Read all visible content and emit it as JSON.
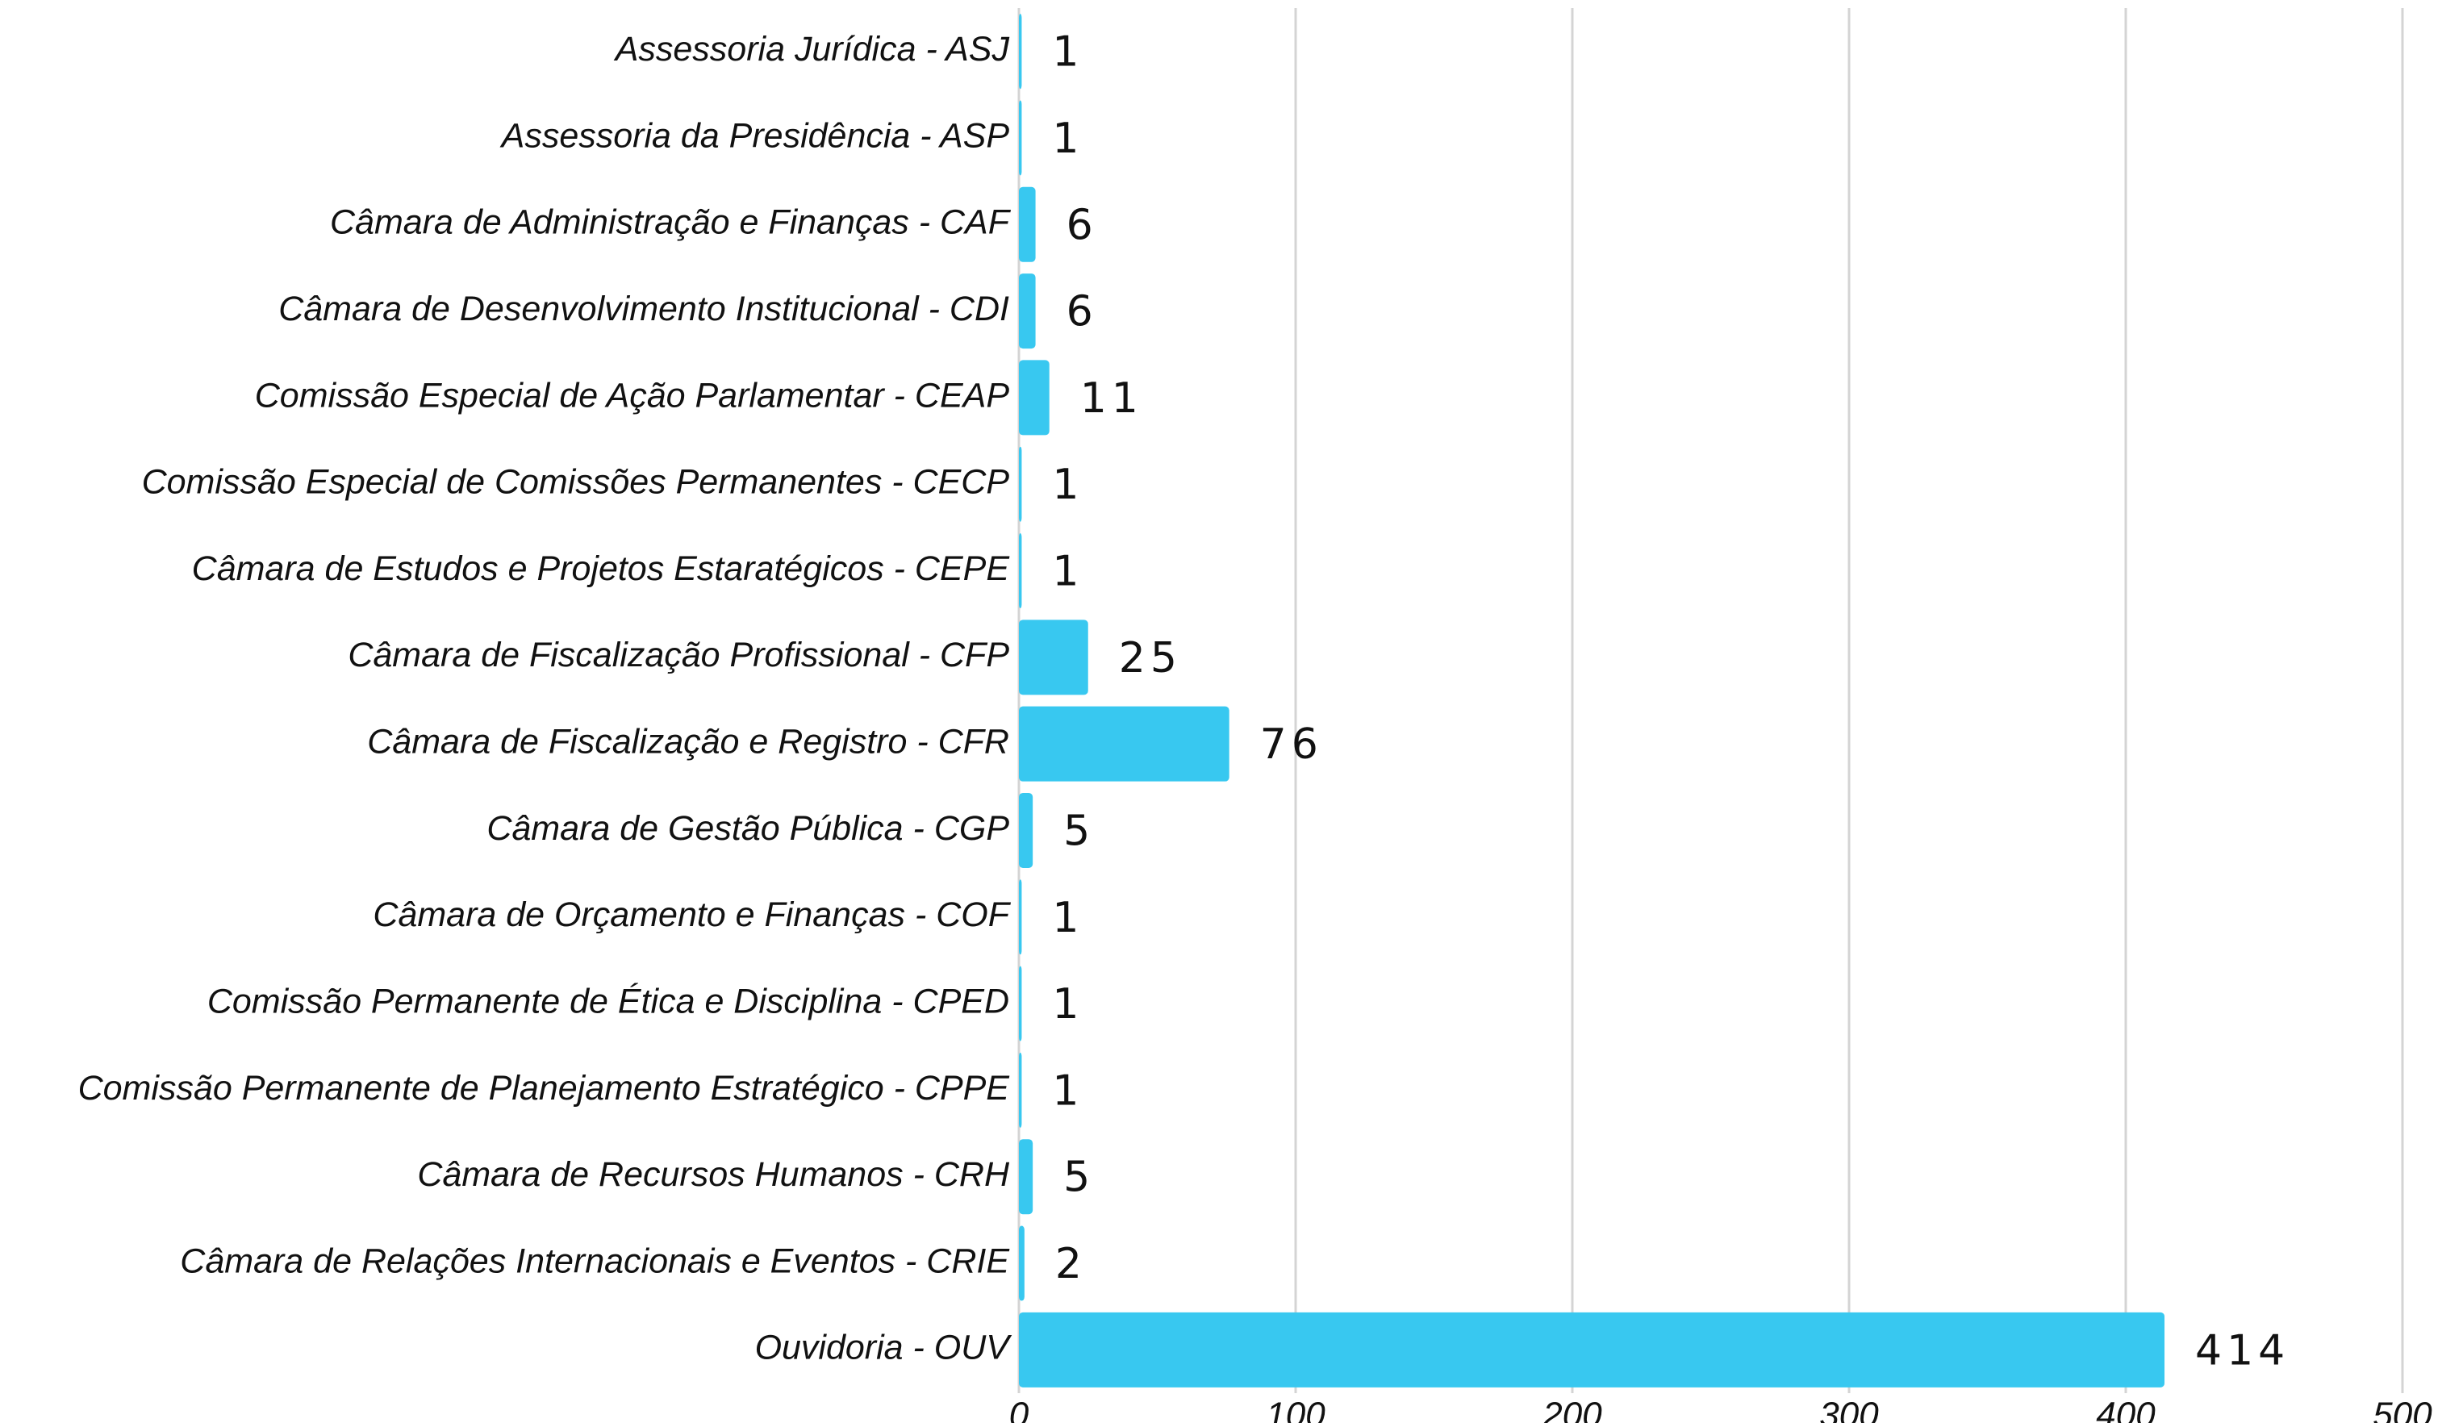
{
  "chart_data": {
    "type": "bar",
    "orientation": "horizontal",
    "categories": [
      "Assessoria Jurídica - ASJ",
      "Assessoria da Presidência - ASP",
      "Câmara de Administração e Finanças - CAF",
      "Câmara de Desenvolvimento Institucional - CDI",
      "Comissão Especial de Ação Parlamentar - CEAP",
      "Comissão Especial de Comissões Permanentes - CECP",
      "Câmara de Estudos e Projetos Estaratégicos - CEPE",
      "Câmara de Fiscalização Profissional - CFP",
      "Câmara de Fiscalização e Registro - CFR",
      "Câmara de Gestão Pública - CGP",
      "Câmara de Orçamento e Finanças - COF",
      "Comissão Permanente de Ética e Disciplina - CPED",
      "Comissão Permanente de Planejamento Estratégico - CPPE",
      "Câmara de Recursos Humanos - CRH",
      "Câmara de Relações Internacionais e Eventos - CRIE",
      "Ouvidoria - OUV"
    ],
    "values": [
      1,
      1,
      6,
      6,
      11,
      1,
      1,
      25,
      76,
      5,
      1,
      1,
      1,
      5,
      2,
      414
    ],
    "color": "#38c8f0",
    "xlim": [
      0,
      500
    ],
    "xticks": [
      0,
      100,
      200,
      300,
      400,
      500
    ],
    "grid": true
  }
}
